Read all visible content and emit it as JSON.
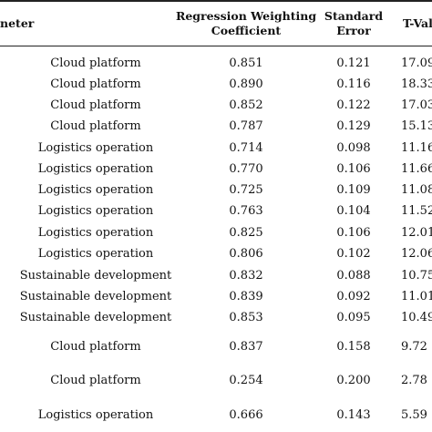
{
  "table": {
    "headers": {
      "parameter": "neter",
      "coef_line1": "Regression Weighting",
      "coef_line2": "Coefficient",
      "se_line1": "Standard",
      "se_line2": "Error",
      "t": "T-Val"
    },
    "rows": [
      {
        "param": "Cloud platform",
        "coef": "0.851",
        "se": "0.121",
        "t": "17.09"
      },
      {
        "param": "Cloud platform",
        "coef": "0.890",
        "se": "0.116",
        "t": "18.33"
      },
      {
        "param": "Cloud platform",
        "coef": "0.852",
        "se": "0.122",
        "t": "17.03"
      },
      {
        "param": "Cloud platform",
        "coef": "0.787",
        "se": "0.129",
        "t": "15.13"
      },
      {
        "param": "Logistics operation",
        "coef": "0.714",
        "se": "0.098",
        "t": "11.16"
      },
      {
        "param": "Logistics operation",
        "coef": "0.770",
        "se": "0.106",
        "t": "11.66"
      },
      {
        "param": "Logistics operation",
        "coef": "0.725",
        "se": "0.109",
        "t": "11.08"
      },
      {
        "param": "Logistics operation",
        "coef": "0.763",
        "se": "0.104",
        "t": "11.52"
      },
      {
        "param": "Logistics operation",
        "coef": "0.825",
        "se": "0.106",
        "t": "12.01"
      },
      {
        "param": "Logistics operation",
        "coef": "0.806",
        "se": "0.102",
        "t": "12.06"
      },
      {
        "param": "Sustainable development",
        "coef": "0.832",
        "se": "0.088",
        "t": "10.75"
      },
      {
        "param": "Sustainable development",
        "coef": "0.839",
        "se": "0.092",
        "t": "11.01"
      },
      {
        "param": "Sustainable development",
        "coef": "0.853",
        "se": "0.095",
        "t": "10.49"
      },
      {
        "param": "Cloud platform",
        "coef": "0.837",
        "se": "0.158",
        "t": "9.72"
      },
      {
        "param": "Cloud platform",
        "coef": "0.254",
        "se": "0.200",
        "t": "2.78"
      },
      {
        "param": "Logistics operation",
        "coef": "0.666",
        "se": "0.143",
        "t": "5.59"
      }
    ]
  }
}
